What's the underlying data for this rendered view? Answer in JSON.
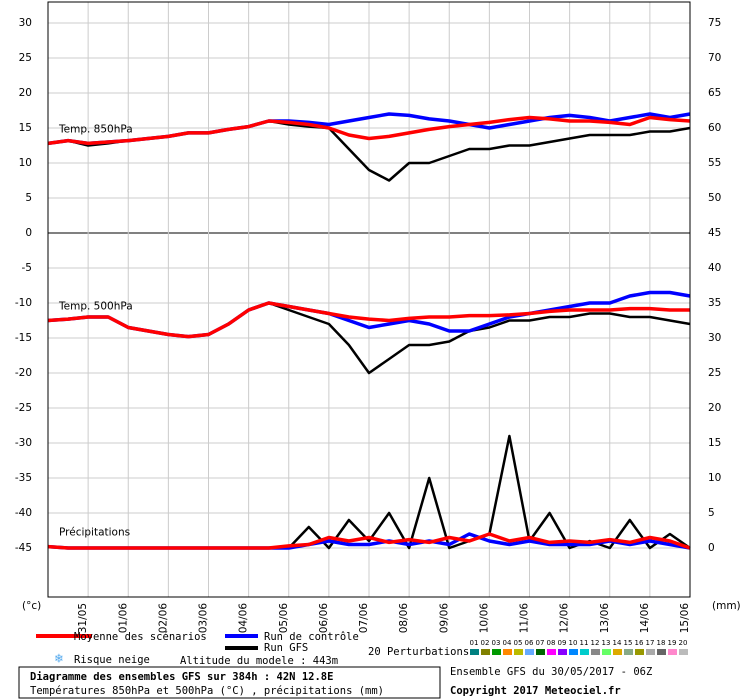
{
  "chart_data": {
    "type": "line",
    "x": [
      0,
      0.5,
      1,
      1.5,
      2,
      2.5,
      3,
      3.5,
      4,
      4.5,
      5,
      5.5,
      6,
      6.5,
      7,
      7.5,
      8,
      8.5,
      9,
      9.5,
      10,
      10.5,
      11,
      11.5,
      12,
      12.5,
      13,
      13.5,
      14,
      14.5,
      15,
      15.5,
      16
    ],
    "xlim": [
      0,
      16
    ],
    "xticks": [
      {
        "value": 1,
        "label": "31/05"
      },
      {
        "value": 2,
        "label": "01/06"
      },
      {
        "value": 3,
        "label": "02/06"
      },
      {
        "value": 4,
        "label": "03/06"
      },
      {
        "value": 5,
        "label": "04/06"
      },
      {
        "value": 6,
        "label": "05/06"
      },
      {
        "value": 7,
        "label": "06/06"
      },
      {
        "value": 8,
        "label": "07/06"
      },
      {
        "value": 9,
        "label": "08/06"
      },
      {
        "value": 10,
        "label": "09/06"
      },
      {
        "value": 11,
        "label": "10/06"
      },
      {
        "value": 12,
        "label": "11/06"
      },
      {
        "value": 13,
        "label": "12/06"
      },
      {
        "value": 14,
        "label": "13/06"
      },
      {
        "value": 15,
        "label": "14/06"
      },
      {
        "value": 16,
        "label": "15/06"
      }
    ],
    "ylim": [
      -52,
      33
    ],
    "yticks": [
      30,
      25,
      20,
      15,
      10,
      5,
      0,
      -5,
      -10,
      -15,
      -20,
      -25,
      -30,
      -35,
      -40,
      -45
    ],
    "y2lim": [
      -7,
      78
    ],
    "y2ticks": [
      75,
      70,
      65,
      60,
      55,
      50,
      45,
      40,
      35,
      30,
      25,
      20,
      15,
      10,
      5,
      0
    ],
    "ylabel": "(°c)",
    "y2label": "(mm)",
    "grid": true,
    "series": [
      {
        "name": "Moyenne des scénarios",
        "color": "#ff0000"
      },
      {
        "name": "Run de contrôle",
        "color": "#0000ff"
      },
      {
        "name": "Run GFS",
        "color": "#000000"
      }
    ],
    "panels": [
      {
        "label": "Temp. 850hPa",
        "axis": "y",
        "values": [
          [
            12.8,
            13.2,
            12.8,
            13,
            13.2,
            13.5,
            13.8,
            14.3,
            14.3,
            14.8,
            15.2,
            16,
            15.8,
            15.5,
            15,
            14,
            13.5,
            13.8,
            14.3,
            14.8,
            15.2,
            15.5,
            15.8,
            16.2,
            16.5,
            16.3,
            16,
            16,
            15.8,
            15.5,
            16.5,
            16.2,
            16
          ],
          [
            12.8,
            13.2,
            12.8,
            13,
            13.2,
            13.5,
            13.8,
            14.3,
            14.3,
            14.8,
            15.2,
            16,
            16,
            15.8,
            15.5,
            16,
            16.5,
            17,
            16.8,
            16.3,
            16,
            15.5,
            15,
            15.5,
            16,
            16.5,
            16.8,
            16.5,
            16,
            16.5,
            17,
            16.5,
            17
          ],
          [
            12.8,
            13.2,
            12.5,
            12.8,
            13.2,
            13.5,
            13.8,
            14.3,
            14.3,
            14.8,
            15.2,
            16,
            15.5,
            15.2,
            15,
            12,
            9,
            7.5,
            10,
            10,
            11,
            12,
            12,
            12.5,
            12.5,
            13,
            13.5,
            14,
            14,
            14,
            14.5,
            14.5,
            15
          ]
        ]
      },
      {
        "label": "Temp. 500hPa",
        "axis": "y",
        "values": [
          [
            -12.5,
            -12.3,
            -12,
            -12,
            -13.5,
            -14,
            -14.5,
            -14.8,
            -14.5,
            -13,
            -11,
            -10,
            -10.5,
            -11,
            -11.5,
            -12,
            -12.3,
            -12.5,
            -12.2,
            -12,
            -12,
            -11.8,
            -11.8,
            -11.7,
            -11.5,
            -11.2,
            -11,
            -11,
            -11,
            -10.8,
            -10.8,
            -11,
            -11
          ],
          [
            -12.5,
            -12.3,
            -12,
            -12,
            -13.5,
            -14,
            -14.5,
            -14.8,
            -14.5,
            -13,
            -11,
            -10,
            -10.5,
            -11,
            -11.5,
            -12.5,
            -13.5,
            -13,
            -12.5,
            -13,
            -14,
            -14,
            -13,
            -12,
            -11.5,
            -11,
            -10.5,
            -10,
            -10,
            -9,
            -8.5,
            -8.5,
            -9
          ],
          [
            -12.5,
            -12.3,
            -12,
            -12,
            -13.5,
            -14,
            -14.5,
            -14.8,
            -14.5,
            -13,
            -11,
            -10,
            -11,
            -12,
            -13,
            -16,
            -20,
            -18,
            -16,
            -16,
            -15.5,
            -14,
            -13.5,
            -12.5,
            -12.5,
            -12,
            -12,
            -11.5,
            -11.5,
            -12,
            -12,
            -12.5,
            -13
          ]
        ]
      },
      {
        "label": "Précipitations",
        "axis": "y2",
        "values": [
          [
            0.2,
            0,
            0,
            0,
            0,
            0,
            0,
            0,
            0,
            0,
            0,
            0,
            0.3,
            0.5,
            1.5,
            1,
            1.5,
            0.8,
            1.2,
            0.8,
            1.5,
            1,
            2,
            1,
            1.5,
            0.8,
            1,
            0.8,
            1.2,
            0.8,
            1.5,
            1,
            0
          ],
          [
            0.2,
            0,
            0,
            0,
            0,
            0,
            0,
            0,
            0,
            0,
            0,
            0,
            0,
            0.5,
            1,
            0.5,
            0.5,
            1,
            0.5,
            1,
            0.5,
            2,
            1,
            0.5,
            1,
            0.5,
            0.5,
            0.5,
            1,
            0.5,
            1,
            0.5,
            0
          ],
          [
            0.2,
            0,
            0,
            0,
            0,
            0,
            0,
            0,
            0,
            0,
            0,
            0,
            0,
            3,
            0,
            4,
            1,
            5,
            0,
            10,
            0,
            1,
            2,
            16,
            1,
            5,
            0,
            1,
            0,
            4,
            0,
            2,
            0
          ]
        ]
      }
    ],
    "perturbations": {
      "label": "20 Perturbations",
      "members": [
        {
          "label": "01",
          "color": "#008080"
        },
        {
          "label": "02",
          "color": "#808000"
        },
        {
          "label": "03",
          "color": "#009900"
        },
        {
          "label": "04",
          "color": "#ff8800"
        },
        {
          "label": "05",
          "color": "#bbbb00"
        },
        {
          "label": "06",
          "color": "#66aaff"
        },
        {
          "label": "07",
          "color": "#006600"
        },
        {
          "label": "08",
          "color": "#ff00ff"
        },
        {
          "label": "09",
          "color": "#8800ff"
        },
        {
          "label": "10",
          "color": "#0088ff"
        },
        {
          "label": "11",
          "color": "#00cccc"
        },
        {
          "label": "12",
          "color": "#888888"
        },
        {
          "label": "13",
          "color": "#66ff66"
        },
        {
          "label": "14",
          "color": "#ddaa00"
        },
        {
          "label": "15",
          "color": "#88aa88"
        },
        {
          "label": "16",
          "color": "#999900"
        },
        {
          "label": "17",
          "color": "#aaaaaa"
        },
        {
          "label": "18",
          "color": "#666666"
        },
        {
          "label": "19",
          "color": "#ff88cc"
        },
        {
          "label": "20",
          "color": "#bbbbbb"
        }
      ]
    },
    "snow_label": "Risque neige",
    "altitude": "Altitude du modele : 443m",
    "run_info": "Ensemble GFS du 30/05/2017 - 06Z",
    "title": "Diagramme des ensembles GFS sur 384h : 42N 12.8E",
    "subtitle": "Températures 850hPa et 500hPa (°C) , précipitations (mm)",
    "copyright": "Copyright 2017 Meteociel.fr"
  }
}
